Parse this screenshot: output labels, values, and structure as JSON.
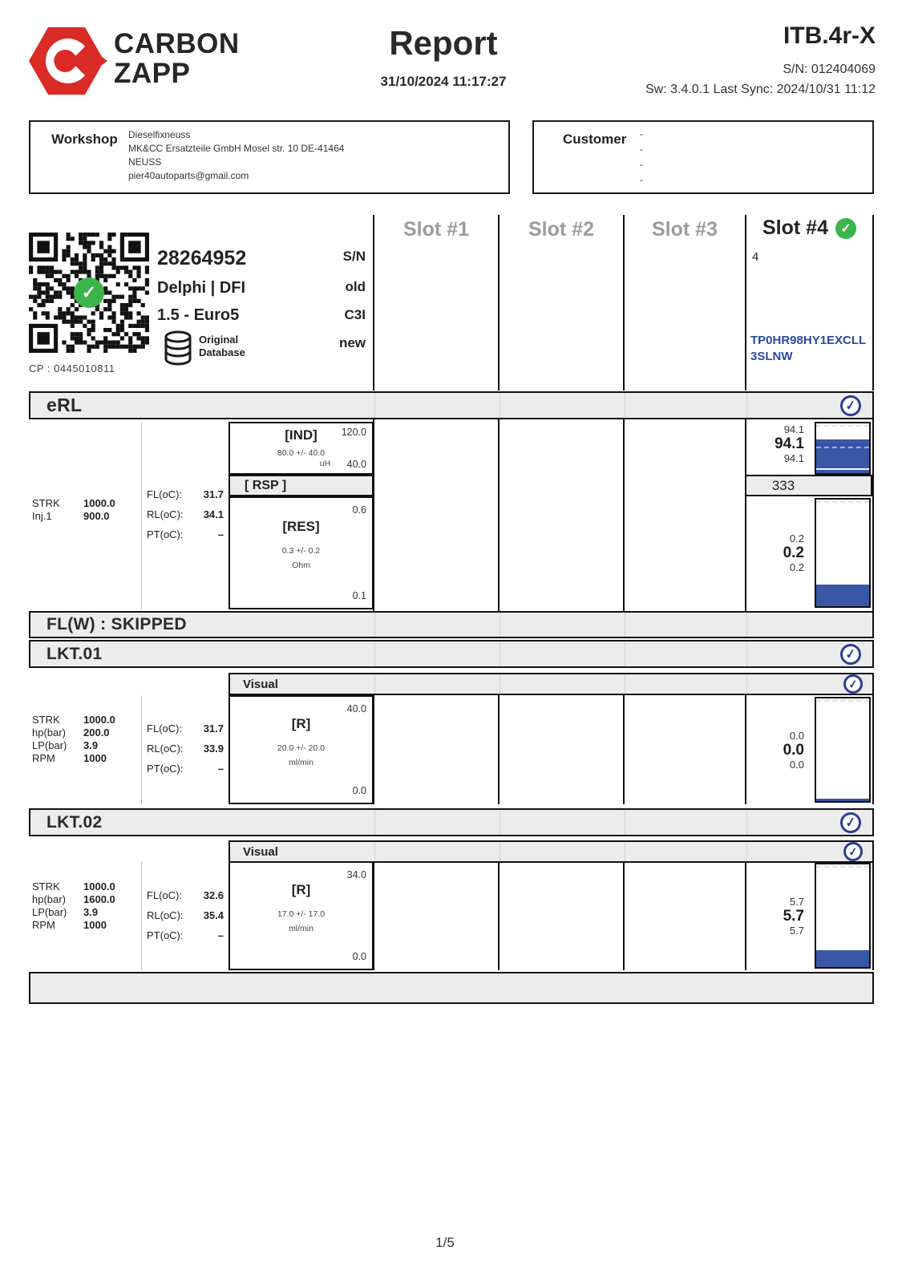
{
  "header": {
    "brand_line1": "CARBON",
    "brand_line2": "ZAPP",
    "title": "Report",
    "datetime": "31/10/2024 11:17:27",
    "device": "ITB.4r-X",
    "serial": "S/N: 012404069",
    "sync": "Sw: 3.4.0.1 Last Sync: 2024/10/31 11:12"
  },
  "workshop": {
    "label": "Workshop",
    "line1": "Dieselfixneuss",
    "line2": "MK&CC Ersatzteile GmbH Mosel str. 10 DE-41464",
    "line3": "NEUSS",
    "line4": "pier40autoparts@gmail.com"
  },
  "customer": {
    "label": "Customer",
    "line1": "-",
    "line2": "-",
    "line3": "-",
    "line4": "-"
  },
  "injector": {
    "part_number": "28264952",
    "brand": "Delphi | DFI",
    "engine": "1.5 - Euro5",
    "db_line1": "Original",
    "db_line2": "Database",
    "cp": "CP : 0445010811",
    "field_sn": "S/N",
    "field_old": "old",
    "field_code": "C3I",
    "field_new": "new"
  },
  "slots": {
    "s1": "Slot #1",
    "s2": "Slot #2",
    "s3": "Slot #3",
    "s4": "Slot #4",
    "s4_index": "4",
    "s4_code": "TP0HR98HY1EXCLL 3SLNW"
  },
  "erl": {
    "title": "eRL",
    "params": [
      [
        "STRK",
        "1000.0"
      ],
      [
        "Inj.1",
        "900.0"
      ]
    ],
    "temps": [
      [
        "FL(oC):",
        "31.7"
      ],
      [
        "RL(oC):",
        "34.1"
      ],
      [
        "PT(oC):",
        "–"
      ]
    ],
    "ind": {
      "name": "[IND]",
      "tol": "80.0 +/- 40.0",
      "unit": "uH",
      "scale_max": "120.0",
      "scale_min": "40.0",
      "v_top": "94.1",
      "v_mid": "94.1",
      "v_bot": "94.1",
      "meter": {
        "min": 40.0,
        "max": 120.0,
        "value": 94.1,
        "nominal": 80.0
      }
    },
    "rsp": {
      "name": "[ RSP ]",
      "value": "333"
    },
    "res": {
      "name": "[RES]",
      "tol": "0.3 +/- 0.2",
      "unit": "Ohm",
      "scale_max": "0.6",
      "scale_min": "0.1",
      "v_top": "0.2",
      "v_mid": "0.2",
      "v_bot": "0.2",
      "meter": {
        "min": 0.1,
        "max": 0.6,
        "value": 0.2
      }
    }
  },
  "flw": {
    "title": "FL(W) : SKIPPED"
  },
  "lkt01": {
    "title": "LKT.01",
    "visual": "Visual",
    "params": [
      [
        "STRK",
        "1000.0"
      ],
      [
        "hp(bar)",
        "200.0"
      ],
      [
        "LP(bar)",
        "3.9"
      ],
      [
        "RPM",
        "1000"
      ]
    ],
    "temps": [
      [
        "FL(oC):",
        "31.7"
      ],
      [
        "RL(oC):",
        "33.9"
      ],
      [
        "PT(oC):",
        "–"
      ]
    ],
    "r": {
      "name": "[R]",
      "tol": "20.0 +/- 20.0",
      "unit": "ml/min",
      "scale_max": "40.0",
      "scale_min": "0.0",
      "v_top": "0.0",
      "v_mid": "0.0",
      "v_bot": "0.0",
      "meter": {
        "min": 0.0,
        "max": 40.0,
        "value": 0.0
      }
    }
  },
  "lkt02": {
    "title": "LKT.02",
    "visual": "Visual",
    "params": [
      [
        "STRK",
        "1000.0"
      ],
      [
        "hp(bar)",
        "1600.0"
      ],
      [
        "LP(bar)",
        "3.9"
      ],
      [
        "RPM",
        "1000"
      ]
    ],
    "temps": [
      [
        "FL(oC):",
        "32.6"
      ],
      [
        "RL(oC):",
        "35.4"
      ],
      [
        "PT(oC):",
        "–"
      ]
    ],
    "r": {
      "name": "[R]",
      "tol": "17.0 +/- 17.0",
      "unit": "ml/min",
      "scale_max": "34.0",
      "scale_min": "0.0",
      "v_top": "5.7",
      "v_mid": "5.7",
      "v_bot": "5.7",
      "meter": {
        "min": 0.0,
        "max": 34.0,
        "value": 5.7
      }
    }
  },
  "checkmark_glyph": "✓",
  "footer": {
    "page": "1/5"
  }
}
